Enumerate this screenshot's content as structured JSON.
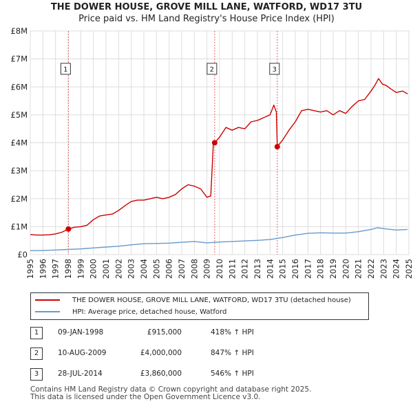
{
  "title": "THE DOWER HOUSE, GROVE MILL LANE, WATFORD, WD17 3TU",
  "subtitle": "Price paid vs. HM Land Registry's House Price Index (HPI)",
  "legend": {
    "property_label": "THE DOWER HOUSE, GROVE MILL LANE, WATFORD, WD17 3TU (detached house)",
    "hpi_label": "HPI: Average price, detached house, Watford"
  },
  "colors": {
    "property": "#cc0000",
    "hpi": "#6699cc",
    "grid": "#dddddd",
    "marker_line": "#e06060"
  },
  "sales": [
    {
      "num": "1",
      "date": "09-JAN-1998",
      "price": "£915,000",
      "pct": "418% ↑ HPI"
    },
    {
      "num": "2",
      "date": "10-AUG-2009",
      "price": "£4,000,000",
      "pct": "847% ↑ HPI"
    },
    {
      "num": "3",
      "date": "28-JUL-2014",
      "price": "£3,860,000",
      "pct": "546% ↑ HPI"
    }
  ],
  "footer": {
    "line1": "Contains HM Land Registry data © Crown copyright and database right 2025.",
    "line2": "This data is licensed under the Open Government Licence v3.0."
  },
  "chart_data": {
    "type": "line",
    "title": "THE DOWER HOUSE, GROVE MILL LANE, WATFORD, WD17 3TU",
    "subtitle": "Price paid vs. HM Land Registry's House Price Index (HPI)",
    "xlabel": "",
    "ylabel": "",
    "xlim": [
      1995,
      2025
    ],
    "ylim": [
      0,
      8000000
    ],
    "y_ticks": [
      0,
      1000000,
      2000000,
      3000000,
      4000000,
      5000000,
      6000000,
      7000000,
      8000000
    ],
    "y_tick_labels": [
      "£0",
      "£1M",
      "£2M",
      "£3M",
      "£4M",
      "£5M",
      "£6M",
      "£7M",
      "£8M"
    ],
    "x_ticks": [
      1995,
      1996,
      1997,
      1998,
      1999,
      2000,
      2001,
      2002,
      2003,
      2004,
      2005,
      2006,
      2007,
      2008,
      2009,
      2010,
      2011,
      2012,
      2013,
      2014,
      2015,
      2016,
      2017,
      2018,
      2019,
      2020,
      2021,
      2022,
      2023,
      2024,
      2025
    ],
    "grid": true,
    "sale_markers": [
      {
        "label": "1",
        "x": 1998.02,
        "y": 915000
      },
      {
        "label": "2",
        "x": 2009.61,
        "y": 4000000
      },
      {
        "label": "3",
        "x": 2014.57,
        "y": 3860000
      }
    ],
    "series": [
      {
        "name": "THE DOWER HOUSE, GROVE MILL LANE, WATFORD, WD17 3TU (detached house)",
        "x": [
          1995.0,
          1995.5,
          1996.0,
          1996.5,
          1997.0,
          1997.5,
          1998.02,
          1998.5,
          1999.0,
          1999.5,
          2000.0,
          2000.5,
          2001.0,
          2001.5,
          2002.0,
          2002.5,
          2003.0,
          2003.5,
          2004.0,
          2004.5,
          2005.0,
          2005.5,
          2006.0,
          2006.5,
          2007.0,
          2007.5,
          2008.0,
          2008.5,
          2009.0,
          2009.3,
          2009.5,
          2009.61,
          2010.0,
          2010.5,
          2011.0,
          2011.5,
          2012.0,
          2012.5,
          2013.0,
          2013.5,
          2014.0,
          2014.3,
          2014.5,
          2014.57,
          2015.0,
          2015.5,
          2016.0,
          2016.5,
          2017.0,
          2017.5,
          2018.0,
          2018.5,
          2019.0,
          2019.5,
          2020.0,
          2020.5,
          2021.0,
          2021.5,
          2022.0,
          2022.3,
          2022.6,
          2022.9,
          2023.2,
          2023.5,
          2024.0,
          2024.5,
          2024.9
        ],
        "values": [
          720000,
          700000,
          700000,
          710000,
          740000,
          800000,
          915000,
          980000,
          1000000,
          1050000,
          1250000,
          1380000,
          1420000,
          1450000,
          1580000,
          1750000,
          1900000,
          1950000,
          1950000,
          2000000,
          2050000,
          2000000,
          2050000,
          2150000,
          2350000,
          2500000,
          2450000,
          2350000,
          2050000,
          2100000,
          3900000,
          4000000,
          4200000,
          4550000,
          4450000,
          4550000,
          4500000,
          4750000,
          4800000,
          4900000,
          5000000,
          5350000,
          5100000,
          3860000,
          4100000,
          4450000,
          4750000,
          5150000,
          5200000,
          5150000,
          5100000,
          5150000,
          5000000,
          5150000,
          5050000,
          5300000,
          5500000,
          5550000,
          5850000,
          6050000,
          6300000,
          6100000,
          6050000,
          5950000,
          5800000,
          5850000,
          5750000
        ]
      },
      {
        "name": "HPI: Average price, detached house, Watford",
        "x": [
          1995.0,
          1996.0,
          1997.0,
          1998.0,
          1999.0,
          2000.0,
          2001.0,
          2002.0,
          2003.0,
          2004.0,
          2005.0,
          2006.0,
          2007.0,
          2008.0,
          2009.0,
          2010.0,
          2011.0,
          2012.0,
          2013.0,
          2014.0,
          2015.0,
          2016.0,
          2017.0,
          2018.0,
          2019.0,
          2020.0,
          2021.0,
          2022.0,
          2022.5,
          2023.0,
          2024.0,
          2024.9
        ],
        "values": [
          140000,
          150000,
          165000,
          185000,
          205000,
          240000,
          270000,
          300000,
          350000,
          390000,
          400000,
          410000,
          440000,
          470000,
          420000,
          450000,
          470000,
          490000,
          510000,
          540000,
          610000,
          700000,
          760000,
          780000,
          770000,
          770000,
          820000,
          900000,
          960000,
          930000,
          880000,
          900000
        ]
      }
    ]
  }
}
